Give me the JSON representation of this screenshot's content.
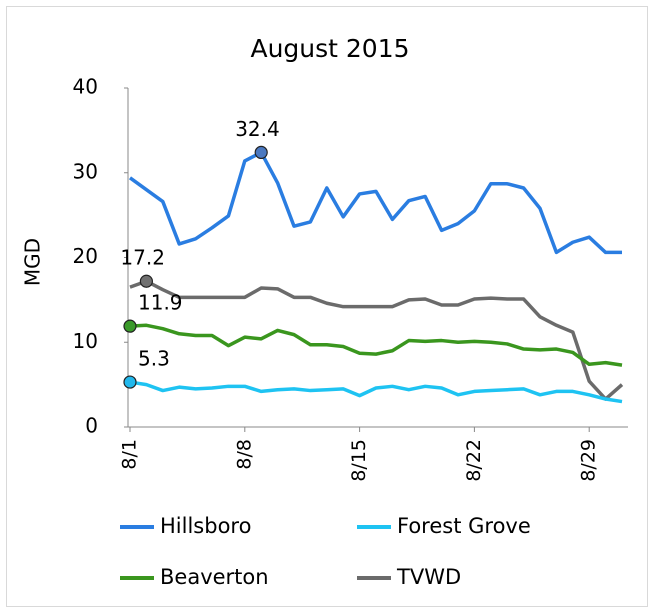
{
  "chart_data": {
    "type": "line",
    "title": "August 2015",
    "y_label": "MGD",
    "categories": [
      "8/1",
      null,
      null,
      null,
      null,
      null,
      null,
      "8/8",
      null,
      null,
      null,
      null,
      null,
      null,
      "8/15",
      null,
      null,
      null,
      null,
      null,
      null,
      "8/22",
      null,
      null,
      null,
      null,
      null,
      null,
      "8/29",
      null,
      null
    ],
    "ylim": [
      0,
      40
    ],
    "yticks": [
      0,
      10,
      20,
      30,
      40
    ],
    "grid": false,
    "series": [
      {
        "name": "Hillsboro",
        "color": "#2a7de1",
        "marker_color": "#4a78c0",
        "labeled_index": 8,
        "values": [
          29.4,
          28.0,
          26.6,
          21.6,
          22.2,
          23.5,
          24.9,
          31.4,
          32.4,
          28.8,
          23.7,
          24.2,
          28.2,
          24.8,
          27.5,
          27.8,
          24.5,
          26.7,
          27.2,
          23.2,
          24.0,
          25.5,
          28.7,
          28.7,
          28.2,
          25.8,
          20.6,
          21.8,
          22.4,
          20.6,
          20.6
        ]
      },
      {
        "name": "Forest Grove",
        "color": "#1ec3f2",
        "marker_color": "#22b8ec",
        "labeled_index": 0,
        "values": [
          5.3,
          5.0,
          4.3,
          4.7,
          4.5,
          4.6,
          4.8,
          4.8,
          4.2,
          4.4,
          4.5,
          4.3,
          4.4,
          4.5,
          3.7,
          4.6,
          4.8,
          4.4,
          4.8,
          4.6,
          3.8,
          4.2,
          4.3,
          4.4,
          4.5,
          3.8,
          4.2,
          4.2,
          3.8,
          3.3,
          3.0
        ]
      },
      {
        "name": "Beaverton",
        "color": "#3a961e",
        "marker_color": "#3a9a2a",
        "labeled_index": 0,
        "values": [
          11.9,
          12.0,
          11.6,
          11.0,
          10.8,
          10.8,
          9.6,
          10.6,
          10.4,
          11.4,
          10.9,
          9.7,
          9.7,
          9.5,
          8.7,
          8.6,
          9.0,
          10.2,
          10.1,
          10.2,
          10.0,
          10.1,
          10.0,
          9.8,
          9.2,
          9.1,
          9.2,
          8.8,
          7.4,
          7.6,
          7.3
        ]
      },
      {
        "name": "TVWD",
        "color": "#6b6b6b",
        "marker_color": "#707070",
        "labeled_index": 1,
        "values": [
          16.5,
          17.2,
          16.2,
          15.3,
          15.3,
          15.3,
          15.3,
          15.3,
          16.4,
          16.3,
          15.3,
          15.3,
          14.6,
          14.2,
          14.2,
          14.2,
          14.2,
          15.0,
          15.1,
          14.4,
          14.4,
          15.1,
          15.2,
          15.1,
          15.1,
          13.0,
          12.0,
          11.2,
          5.4,
          3.3,
          5.0
        ]
      }
    ]
  }
}
